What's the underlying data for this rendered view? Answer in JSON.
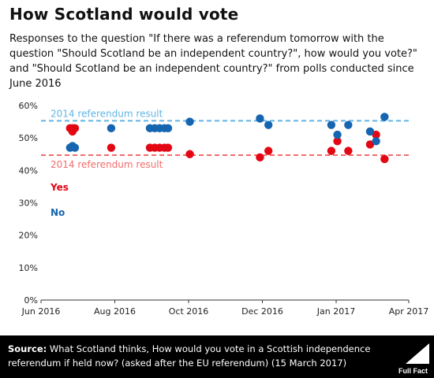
{
  "header": {
    "title": "How Scotland would vote",
    "subtitle": "Responses to the question \"If there was a referendum tomorrow with the question \"Should Scotland be an independent country?\", how would you vote?\" and \"Should Scotland be an independent country?\" from polls conducted since June 2016"
  },
  "footer": {
    "source_label": "Source:",
    "source_text": "What Scotland thinks, How would you vote in a Scottish independence referendum if held now? (asked after the EU referendum) (15 March 2017)",
    "logo_text": "Full Fact"
  },
  "chart_data": {
    "type": "scatter",
    "title": "",
    "xlabel": "",
    "ylabel": "",
    "x_ticks": [
      "Jun 2016",
      "Aug 2016",
      "Oct 2016",
      "Dec 2016",
      "Jan 2017",
      "Apr 2017"
    ],
    "x_tick_dates": [
      "2016-06-01",
      "2016-08-01",
      "2016-10-01",
      "2016-12-01",
      "2017-01-31",
      "2017-04-01"
    ],
    "xlim": [
      "2016-06-01",
      "2017-04-01"
    ],
    "y_ticks": [
      "0%",
      "10%",
      "20%",
      "30%",
      "40%",
      "50%",
      "60%"
    ],
    "ylim": [
      0,
      60
    ],
    "grid": false,
    "reference_lines": [
      {
        "label": "2014 referendum result",
        "value": 55.3,
        "color": "#62b5e5",
        "label_position": "above"
      },
      {
        "label": "2014 referendum result",
        "value": 44.7,
        "color": "#f26b6b",
        "label_position": "below"
      }
    ],
    "legend": [
      {
        "name": "Yes",
        "color": "#e30613"
      },
      {
        "name": "No",
        "color": "#1565b0"
      }
    ],
    "series": [
      {
        "name": "Yes",
        "color": "#e30613",
        "points": [
          {
            "x": "2016-06-25",
            "y": 53
          },
          {
            "x": "2016-06-27",
            "y": 53
          },
          {
            "x": "2016-06-29",
            "y": 53
          },
          {
            "x": "2016-06-27",
            "y": 52
          },
          {
            "x": "2016-07-29",
            "y": 47
          },
          {
            "x": "2016-08-30",
            "y": 47
          },
          {
            "x": "2016-09-03",
            "y": 47
          },
          {
            "x": "2016-09-07",
            "y": 47
          },
          {
            "x": "2016-09-11",
            "y": 47
          },
          {
            "x": "2016-09-14",
            "y": 47
          },
          {
            "x": "2016-10-02",
            "y": 45
          },
          {
            "x": "2016-11-29",
            "y": 44
          },
          {
            "x": "2016-12-06",
            "y": 46
          },
          {
            "x": "2017-01-27",
            "y": 46
          },
          {
            "x": "2017-02-01",
            "y": 49
          },
          {
            "x": "2017-02-10",
            "y": 46
          },
          {
            "x": "2017-02-28",
            "y": 48
          },
          {
            "x": "2017-03-05",
            "y": 51
          },
          {
            "x": "2017-03-12",
            "y": 43.5
          }
        ]
      },
      {
        "name": "No",
        "color": "#1565b0",
        "points": [
          {
            "x": "2016-06-25",
            "y": 47
          },
          {
            "x": "2016-06-27",
            "y": 47.5
          },
          {
            "x": "2016-06-29",
            "y": 47
          },
          {
            "x": "2016-07-29",
            "y": 53
          },
          {
            "x": "2016-08-30",
            "y": 53
          },
          {
            "x": "2016-09-03",
            "y": 53
          },
          {
            "x": "2016-09-07",
            "y": 53
          },
          {
            "x": "2016-09-11",
            "y": 53
          },
          {
            "x": "2016-09-14",
            "y": 53
          },
          {
            "x": "2016-10-02",
            "y": 55
          },
          {
            "x": "2016-11-29",
            "y": 56
          },
          {
            "x": "2016-12-06",
            "y": 54
          },
          {
            "x": "2017-01-27",
            "y": 54
          },
          {
            "x": "2017-02-01",
            "y": 51
          },
          {
            "x": "2017-02-10",
            "y": 54
          },
          {
            "x": "2017-02-28",
            "y": 52
          },
          {
            "x": "2017-03-05",
            "y": 49
          },
          {
            "x": "2017-03-12",
            "y": 56.5
          }
        ]
      }
    ]
  }
}
